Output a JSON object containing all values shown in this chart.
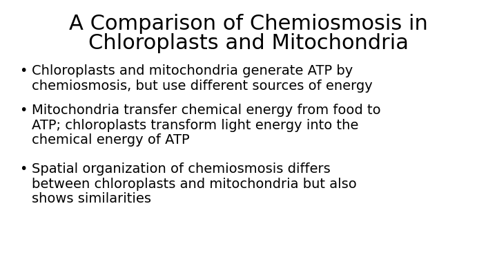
{
  "title_line1": "A Comparison of Chemiosmosis in",
  "title_line2": "Chloroplasts and Mitochondria",
  "bullet1_line1": "Chloroplasts and mitochondria generate ATP by",
  "bullet1_line2": "chemiosmosis, but use different sources of energy",
  "bullet2_line1": "Mitochondria transfer chemical energy from food to",
  "bullet2_line2": "ATP; chloroplasts transform light energy into the",
  "bullet2_line3": "chemical energy of ATP",
  "bullet3_line1": "Spatial organization of chemiosmosis differs",
  "bullet3_line2": "between chloroplasts and mitochondria but also",
  "bullet3_line3": "shows similarities",
  "background_color": "#ffffff",
  "text_color": "#000000",
  "title_fontsize": 22,
  "body_fontsize": 14,
  "font_family": "DejaVu Sans"
}
